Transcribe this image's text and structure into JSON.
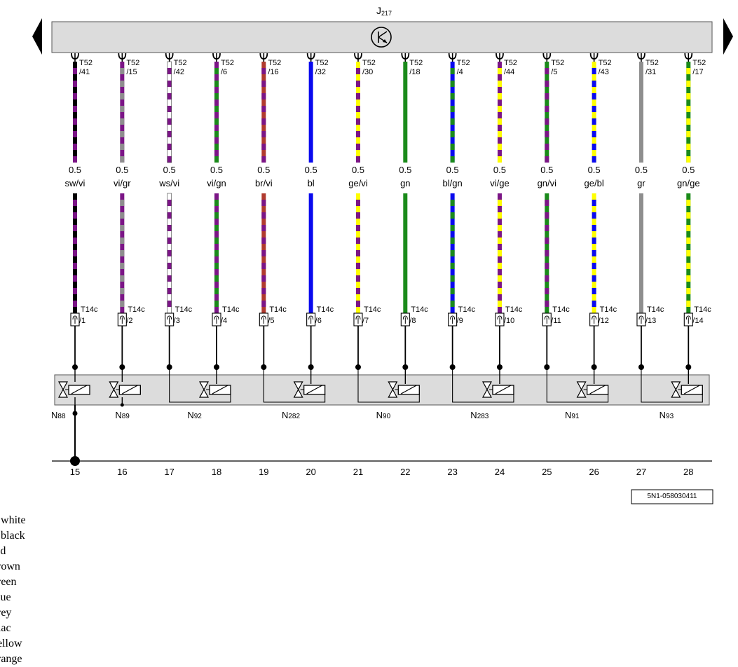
{
  "control_unit": {
    "label": "J",
    "sub": "217"
  },
  "ref_code": "5N1-058030411",
  "connector_b": "T14c",
  "wires": [
    {
      "pin_top_prefix": "T52",
      "pin_top": "/41",
      "size": "0.5",
      "code": "sw/vi",
      "colors": [
        "#000000",
        "#7b1586"
      ],
      "pin_bottom": "/1",
      "track": "15"
    },
    {
      "pin_top_prefix": "T52",
      "pin_top": "/15",
      "size": "0.5",
      "code": "vi/gr",
      "colors": [
        "#7b1586",
        "#8e8e8e"
      ],
      "pin_bottom": "/2",
      "track": "16"
    },
    {
      "pin_top_prefix": "T52",
      "pin_top": "/42",
      "size": "0.5",
      "code": "ws/vi",
      "colors": [
        "#ffffff",
        "#7b1586"
      ],
      "pin_bottom": "/3",
      "track": "17"
    },
    {
      "pin_top_prefix": "T52",
      "pin_top": "/6",
      "size": "0.5",
      "code": "vi/gn",
      "colors": [
        "#7b1586",
        "#1a8a1a"
      ],
      "pin_bottom": "/4",
      "track": "18"
    },
    {
      "pin_top_prefix": "T52",
      "pin_top": "/16",
      "size": "0.5",
      "code": "br/vi",
      "colors": [
        "#b03a2e",
        "#7b1586"
      ],
      "pin_bottom": "/5",
      "track": "19"
    },
    {
      "pin_top_prefix": "T52",
      "pin_top": "/32",
      "size": "0.5",
      "code": "bl",
      "colors": [
        "#0a0aee"
      ],
      "pin_bottom": "/6",
      "track": "20"
    },
    {
      "pin_top_prefix": "T52",
      "pin_top": "/30",
      "size": "0.5",
      "code": "ge/vi",
      "colors": [
        "#ffff00",
        "#7b1586"
      ],
      "pin_bottom": "/7",
      "track": "21"
    },
    {
      "pin_top_prefix": "T52",
      "pin_top": "/18",
      "size": "0.5",
      "code": "gn",
      "colors": [
        "#1a8a1a"
      ],
      "pin_bottom": "/8",
      "track": "22"
    },
    {
      "pin_top_prefix": "T52",
      "pin_top": "/4",
      "size": "0.5",
      "code": "bl/gn",
      "colors": [
        "#0a0aee",
        "#1a8a1a"
      ],
      "pin_bottom": "/9",
      "track": "23"
    },
    {
      "pin_top_prefix": "T52",
      "pin_top": "/44",
      "size": "0.5",
      "code": "vi/ge",
      "colors": [
        "#7b1586",
        "#ffff00"
      ],
      "pin_bottom": "/10",
      "track": "24"
    },
    {
      "pin_top_prefix": "T52",
      "pin_top": "/5",
      "size": "0.5",
      "code": "gn/vi",
      "colors": [
        "#1a8a1a",
        "#7b1586"
      ],
      "pin_bottom": "/11",
      "track": "25"
    },
    {
      "pin_top_prefix": "T52",
      "pin_top": "/43",
      "size": "0.5",
      "code": "ge/bl",
      "colors": [
        "#ffff00",
        "#0a0aee"
      ],
      "pin_bottom": "/12",
      "track": "26"
    },
    {
      "pin_top_prefix": "T52",
      "pin_top": "/31",
      "size": "0.5",
      "code": "gr",
      "colors": [
        "#8e8e8e"
      ],
      "pin_bottom": "/13",
      "track": "27"
    },
    {
      "pin_top_prefix": "T52",
      "pin_top": "/17",
      "size": "0.5",
      "code": "gn/ge",
      "colors": [
        "#1a8a1a",
        "#ffff00"
      ],
      "pin_bottom": "/14",
      "track": "28"
    }
  ],
  "valves": [
    {
      "prefix": "N",
      "sub": "88",
      "pins": [
        0
      ]
    },
    {
      "prefix": "N",
      "sub": "89",
      "pins": [
        1
      ]
    },
    {
      "prefix": "N",
      "sub": "92",
      "pins": [
        2,
        3
      ]
    },
    {
      "prefix": "N",
      "sub": "282",
      "pins": [
        4,
        5
      ]
    },
    {
      "prefix": "N",
      "sub": "90",
      "pins": [
        6,
        7
      ]
    },
    {
      "prefix": "N",
      "sub": "283",
      "pins": [
        8,
        9
      ]
    },
    {
      "prefix": "N",
      "sub": "91",
      "pins": [
        10,
        11
      ]
    },
    {
      "prefix": "N",
      "sub": "93",
      "pins": [
        12,
        13
      ]
    }
  ],
  "legend": [
    "= white",
    "= black",
    "red",
    "brown",
    "green",
    "blue",
    "grey",
    "lilac",
    "yellow",
    "orange"
  ]
}
